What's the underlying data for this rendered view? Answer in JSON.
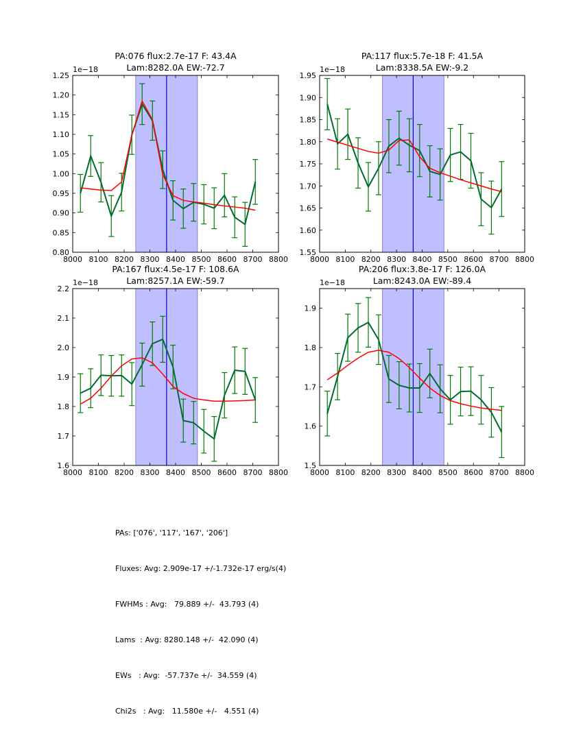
{
  "chart_data": [
    {
      "type": "line",
      "title": [
        "PA:076 flux:2.7e-17 F: 43.4A",
        "Lam:8282.0A EW:-72.7"
      ],
      "xlabel": "",
      "ylabel": "",
      "offset_label": "1e−18",
      "xlim": [
        8000,
        8800
      ],
      "ylim": [
        0.8,
        1.25
      ],
      "xticks": [
        "8000",
        "8100",
        "8200",
        "8300",
        "8400",
        "8500",
        "8600",
        "8700",
        "8800"
      ],
      "yticks": [
        "0.80",
        "0.85",
        "0.90",
        "0.95",
        "1.00",
        "1.05",
        "1.10",
        "1.15",
        "1.20",
        "1.25"
      ],
      "shaded_band": [
        8245,
        8485
      ],
      "vline": 8365,
      "x": [
        8030,
        8070,
        8110,
        8150,
        8190,
        8230,
        8270,
        8310,
        8350,
        8390,
        8430,
        8470,
        8510,
        8550,
        8590,
        8630,
        8670,
        8710
      ],
      "series": [
        {
          "name": "data",
          "color": "#006b2f",
          "values": [
            0.95,
            1.045,
            0.978,
            0.892,
            0.953,
            1.099,
            1.177,
            1.135,
            1.01,
            0.932,
            0.911,
            0.927,
            0.922,
            0.912,
            0.945,
            0.889,
            0.871,
            0.979
          ],
          "errors": [
            0.048,
            0.052,
            0.05,
            0.052,
            0.048,
            0.05,
            0.052,
            0.05,
            0.048,
            0.05,
            0.05,
            0.048,
            0.05,
            0.052,
            0.055,
            0.052,
            0.056,
            0.057
          ]
        },
        {
          "name": "fit",
          "color": "#ff0000",
          "values": [
            0.964,
            0.961,
            0.958,
            0.957,
            0.979,
            1.098,
            1.185,
            1.137,
            0.998,
            0.944,
            0.932,
            0.928,
            0.925,
            0.921,
            0.918,
            0.915,
            0.912,
            0.907
          ]
        }
      ]
    },
    {
      "type": "line",
      "title": [
        "PA:117 flux:5.7e-18 F: 41.5A",
        "Lam:8338.5A EW:-9.2"
      ],
      "xlabel": "",
      "ylabel": "",
      "offset_label": "1e−18",
      "xlim": [
        8000,
        8800
      ],
      "ylim": [
        1.55,
        1.95
      ],
      "xticks": [
        "8000",
        "8100",
        "8200",
        "8300",
        "8400",
        "8500",
        "8600",
        "8700",
        "8800"
      ],
      "yticks": [
        "1.55",
        "1.60",
        "1.65",
        "1.70",
        "1.75",
        "1.80",
        "1.85",
        "1.90",
        "1.95"
      ],
      "shaded_band": [
        8245,
        8485
      ],
      "vline": 8365,
      "x": [
        8030,
        8070,
        8110,
        8150,
        8190,
        8230,
        8270,
        8310,
        8350,
        8390,
        8430,
        8470,
        8510,
        8550,
        8590,
        8630,
        8670,
        8710
      ],
      "series": [
        {
          "name": "data",
          "color": "#006b2f",
          "values": [
            1.885,
            1.795,
            1.817,
            1.752,
            1.698,
            1.74,
            1.79,
            1.808,
            1.792,
            1.78,
            1.733,
            1.726,
            1.77,
            1.777,
            1.757,
            1.67,
            1.651,
            1.693
          ],
          "errors": [
            0.058,
            0.057,
            0.057,
            0.057,
            0.055,
            0.06,
            0.06,
            0.061,
            0.06,
            0.059,
            0.058,
            0.058,
            0.06,
            0.062,
            0.062,
            0.06,
            0.06,
            0.062
          ]
        },
        {
          "name": "fit",
          "color": "#ff0000",
          "values": [
            1.806,
            1.799,
            1.792,
            1.785,
            1.778,
            1.774,
            1.781,
            1.803,
            1.804,
            1.766,
            1.74,
            1.73,
            1.722,
            1.714,
            1.707,
            1.7,
            1.693,
            1.687
          ]
        }
      ]
    },
    {
      "type": "line",
      "title": [
        "PA:167 flux:4.5e-17 F: 108.6A",
        "Lam:8257.1A EW:-59.7"
      ],
      "xlabel": "",
      "ylabel": "",
      "offset_label": "1e−18",
      "xlim": [
        8000,
        8800
      ],
      "ylim": [
        1.6,
        2.2
      ],
      "xticks": [
        "8000",
        "8100",
        "8200",
        "8300",
        "8400",
        "8500",
        "8600",
        "8700",
        "8800"
      ],
      "yticks": [
        "1.6",
        "1.7",
        "1.8",
        "1.9",
        "2.0",
        "2.1",
        "2.2"
      ],
      "shaded_band": [
        8245,
        8485
      ],
      "vline": 8365,
      "x": [
        8030,
        8070,
        8110,
        8150,
        8190,
        8230,
        8270,
        8310,
        8350,
        8390,
        8430,
        8470,
        8510,
        8550,
        8590,
        8630,
        8670,
        8710
      ],
      "series": [
        {
          "name": "data",
          "color": "#006b2f",
          "values": [
            1.845,
            1.862,
            1.906,
            1.904,
            1.905,
            1.876,
            1.942,
            2.013,
            2.028,
            1.934,
            1.752,
            1.745,
            1.716,
            1.69,
            1.838,
            1.923,
            1.919,
            1.822
          ],
          "errors": [
            0.066,
            0.066,
            0.069,
            0.069,
            0.07,
            0.073,
            0.073,
            0.074,
            0.078,
            0.074,
            0.073,
            0.072,
            0.074,
            0.076,
            0.077,
            0.079,
            0.078,
            0.076
          ]
        },
        {
          "name": "fit",
          "color": "#ff0000",
          "values": [
            1.808,
            1.828,
            1.862,
            1.903,
            1.938,
            1.961,
            1.965,
            1.948,
            1.91,
            1.868,
            1.844,
            1.828,
            1.822,
            1.818,
            1.818,
            1.819,
            1.82,
            1.822
          ]
        }
      ]
    },
    {
      "type": "line",
      "title": [
        "PA:206 flux:3.8e-17 F: 126.0A",
        "Lam:8243.0A EW:-89.4"
      ],
      "xlabel": "",
      "ylabel": "",
      "offset_label": "1e−18",
      "xlim": [
        8000,
        8800
      ],
      "ylim": [
        1.5,
        1.95
      ],
      "xticks": [
        "8000",
        "8100",
        "8200",
        "8300",
        "8400",
        "8500",
        "8600",
        "8700",
        "8800"
      ],
      "yticks": [
        "1.5",
        "1.6",
        "1.7",
        "1.8",
        "1.9"
      ],
      "shaded_band": [
        8245,
        8485
      ],
      "vline": 8365,
      "x": [
        8030,
        8070,
        8110,
        8150,
        8190,
        8230,
        8270,
        8310,
        8350,
        8390,
        8430,
        8470,
        8510,
        8550,
        8590,
        8630,
        8670,
        8710
      ],
      "series": [
        {
          "name": "data",
          "color": "#006b2f",
          "values": [
            1.632,
            1.726,
            1.825,
            1.85,
            1.864,
            1.82,
            1.72,
            1.704,
            1.697,
            1.697,
            1.734,
            1.695,
            1.667,
            1.688,
            1.689,
            1.667,
            1.635,
            1.585
          ],
          "errors": [
            0.057,
            0.059,
            0.06,
            0.062,
            0.063,
            0.063,
            0.06,
            0.06,
            0.061,
            0.062,
            0.062,
            0.061,
            0.062,
            0.062,
            0.062,
            0.062,
            0.063,
            0.065
          ]
        },
        {
          "name": "fit",
          "color": "#ff0000",
          "values": [
            1.718,
            1.735,
            1.755,
            1.773,
            1.788,
            1.793,
            1.788,
            1.772,
            1.749,
            1.722,
            1.697,
            1.678,
            1.665,
            1.657,
            1.651,
            1.646,
            1.643,
            1.64
          ]
        }
      ]
    }
  ],
  "colors": {
    "data_line": "#006b2f",
    "error_bar": "#007a00",
    "fit_line": "#ff0000",
    "band_fill": "#bfbfff",
    "band_edge": "#8888bb",
    "vline": "#0000dd"
  },
  "summary": {
    "lines": [
      "PAs: ['076', '117', '167', '206']",
      "Fluxes: Avg: 2.909e-17 +/-1.732e-17 erg/s(4)",
      "FWHMs : Avg:   79.889 +/-  43.793 (4)",
      "Lams  : Avg: 8280.148 +/-  42.090 (4)",
      "EWs   : Avg:  -57.737e +/-  34.559 (4)",
      "Chi2s   : Avg:   11.580e +/-   4.551 (4)"
    ]
  }
}
